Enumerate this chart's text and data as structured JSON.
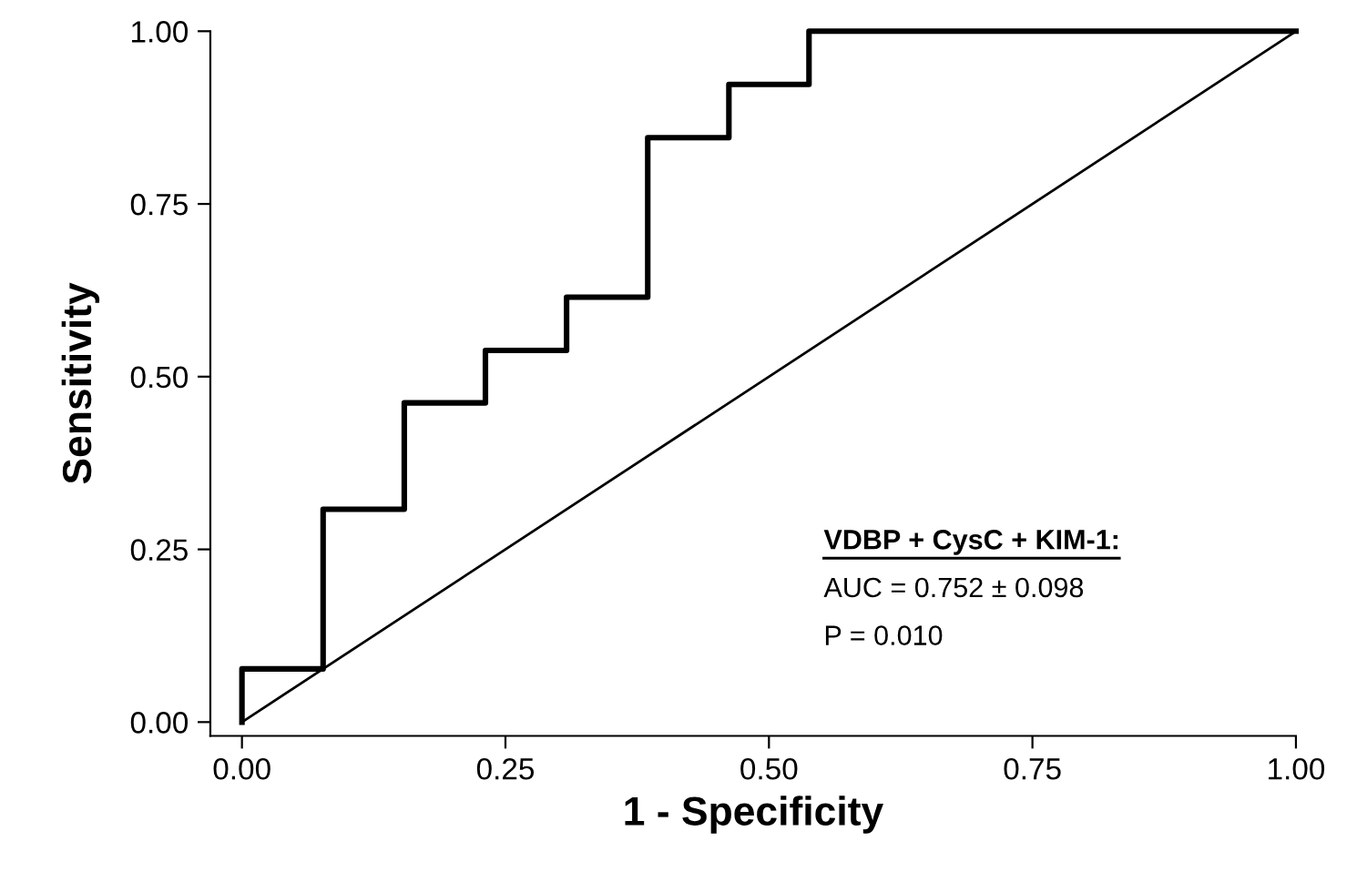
{
  "chart_data": {
    "type": "step",
    "xlabel": "1 - Specificity",
    "ylabel": "Sensitivity",
    "series": [
      {
        "color": "#000000",
        "x": [
          0,
          0,
          0.077,
          0.154,
          0.231,
          0.308,
          0.385,
          0.462,
          0.538,
          1
        ],
        "values": [
          0,
          0.077,
          0.308,
          0.462,
          0.538,
          0.615,
          0.846,
          0.923,
          1,
          1
        ]
      },
      {
        "type": "line",
        "color": "#000000",
        "x": [
          0,
          1
        ],
        "values": [
          0,
          1
        ]
      }
    ],
    "xlim": [
      -0.03,
      1
    ],
    "ylim": [
      -0.02,
      1
    ],
    "xticks": [
      {
        "value": 0,
        "label": "0.00"
      },
      {
        "value": 0.25,
        "label": "0.25"
      },
      {
        "value": 0.5,
        "label": "0.50"
      },
      {
        "value": 0.75,
        "label": "0.75"
      },
      {
        "value": 1,
        "label": "1.00"
      }
    ],
    "yticks": [
      {
        "value": 0,
        "label": "0.00"
      },
      {
        "value": 0.25,
        "label": "0.25"
      },
      {
        "value": 0.5,
        "label": "0.50"
      },
      {
        "value": 0.75,
        "label": "0.75"
      },
      {
        "value": 1,
        "label": "1.00"
      }
    ],
    "annotations": [
      "VDBP + CysC + KIM-1:",
      "AUC = 0.752 ± 0.098",
      "P = 0.010"
    ],
    "grid": false
  }
}
